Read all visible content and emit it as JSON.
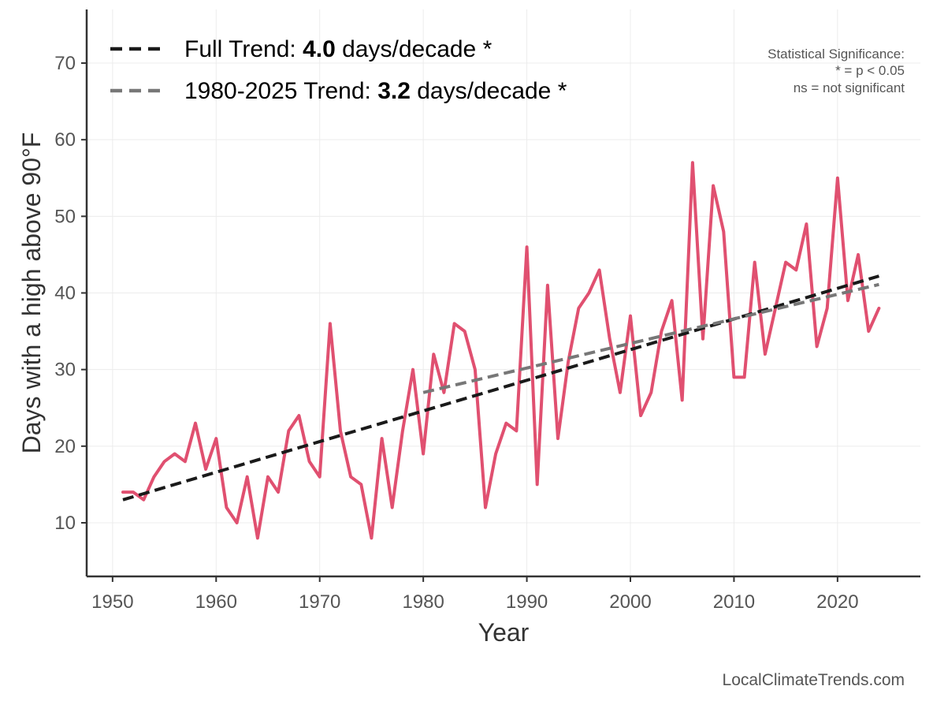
{
  "chart_data": {
    "type": "line",
    "xlabel": "Year",
    "ylabel": "Days with a high above 90°F",
    "xlim": [
      1947.5,
      2028
    ],
    "ylim": [
      3,
      77
    ],
    "xticks": [
      1950,
      1960,
      1970,
      1980,
      1990,
      2000,
      2010,
      2020
    ],
    "yticks": [
      10,
      20,
      30,
      40,
      50,
      60,
      70
    ],
    "grid": true,
    "series": [
      {
        "name": "Days above 90°F",
        "color": "#e05070",
        "x": [
          1951,
          1952,
          1953,
          1954,
          1955,
          1956,
          1957,
          1958,
          1959,
          1960,
          1961,
          1962,
          1963,
          1964,
          1965,
          1966,
          1967,
          1968,
          1969,
          1970,
          1971,
          1972,
          1973,
          1974,
          1975,
          1976,
          1977,
          1978,
          1979,
          1980,
          1981,
          1982,
          1983,
          1984,
          1985,
          1986,
          1987,
          1988,
          1989,
          1990,
          1991,
          1992,
          1993,
          1994,
          1995,
          1996,
          1997,
          1998,
          1999,
          2000,
          2001,
          2002,
          2003,
          2004,
          2005,
          2006,
          2007,
          2008,
          2009,
          2010,
          2011,
          2012,
          2013,
          2014,
          2015,
          2016,
          2017,
          2018,
          2019,
          2020,
          2021,
          2022,
          2023,
          2024
        ],
        "values": [
          14,
          14,
          13,
          16,
          18,
          19,
          18,
          23,
          17,
          21,
          12,
          10,
          16,
          8,
          16,
          14,
          22,
          24,
          18,
          16,
          36,
          22,
          16,
          15,
          8,
          21,
          12,
          22,
          30,
          19,
          32,
          27,
          36,
          35,
          30,
          12,
          19,
          23,
          22,
          46,
          15,
          41,
          21,
          31,
          38,
          40,
          43,
          34,
          27,
          37,
          24,
          27,
          35,
          39,
          26,
          57,
          34,
          54,
          48,
          29,
          29,
          44,
          32,
          38,
          44,
          43,
          49,
          33,
          38,
          55,
          39,
          45,
          35,
          38
        ]
      }
    ],
    "trends": [
      {
        "name": "Full Trend",
        "label_prefix": "Full Trend: ",
        "rate": "4.0",
        "label_suffix": " days/decade *",
        "color": "#1a1a1a",
        "x": [
          1951,
          2024
        ],
        "y": [
          13.0,
          42.2
        ]
      },
      {
        "name": "1980-2025 Trend",
        "label_prefix": "1980-2025 Trend: ",
        "rate": "3.2",
        "label_suffix": " days/decade *",
        "color": "#777777",
        "x": [
          1980,
          2024
        ],
        "y": [
          27.0,
          41.1
        ]
      }
    ],
    "significance_note": [
      "Statistical Significance:",
      "* = p < 0.05",
      "ns = not significant"
    ],
    "legend_position": "top-left"
  },
  "source": "LocalClimateTrends.com"
}
